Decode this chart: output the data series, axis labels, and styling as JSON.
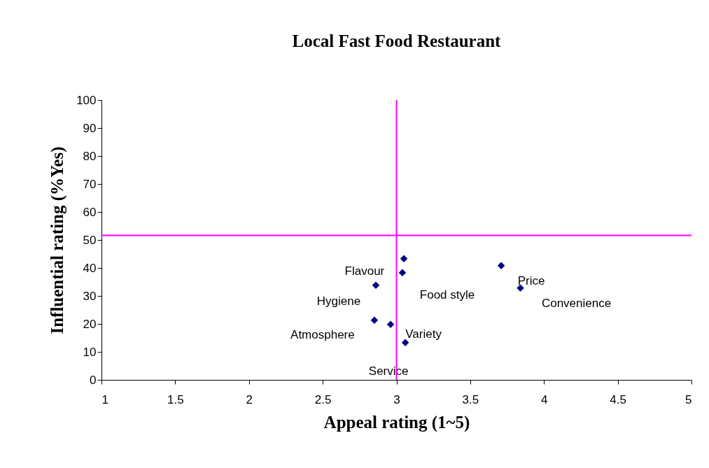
{
  "chart_data": {
    "type": "scatter",
    "title": "Local Fast Food Restaurant",
    "xlabel": "Appeal rating (1~5)",
    "ylabel": "Influential rating (%Yes)",
    "x": [
      3.05,
      3.04,
      3.71,
      3.84,
      2.86,
      2.85,
      2.96,
      3.06
    ],
    "series": [
      {
        "color": "#000080",
        "values": [
          43.3,
          38.3,
          40.8,
          32.8,
          33.8,
          21.3,
          19.8,
          13.3
        ],
        "value_labels": [
          "Food style",
          "Flavour",
          "Price",
          "Convenience",
          "Hygiene",
          "Atmosphere",
          "Variety",
          "Service"
        ]
      }
    ],
    "xlim": [
      1,
      5
    ],
    "xticks": [
      1,
      1.5,
      2,
      2.5,
      3,
      3.5,
      4,
      4.5,
      5
    ],
    "ylim": [
      0,
      100
    ],
    "yticks": [
      0,
      10,
      20,
      30,
      40,
      50,
      60,
      70,
      80,
      90,
      100
    ],
    "marker": "diamond",
    "grid": false,
    "ref_lines": [
      {
        "axis": "x",
        "value": 3,
        "color": "#ff00ff"
      },
      {
        "axis": "y",
        "value": 51.6,
        "color": "#ff00ff"
      }
    ]
  }
}
